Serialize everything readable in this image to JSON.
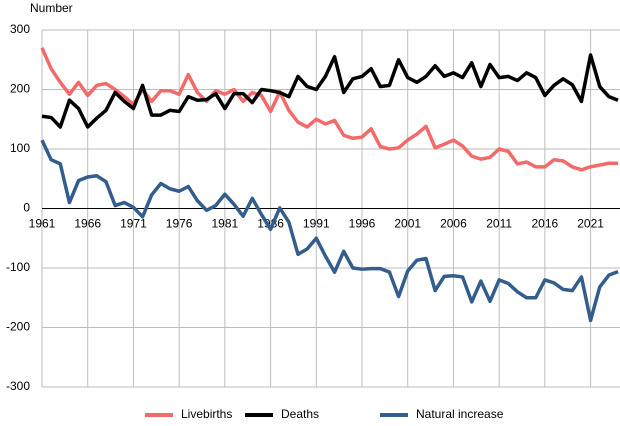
{
  "chart_data": {
    "type": "line",
    "y_label": "Number",
    "x": [
      1961,
      1962,
      1963,
      1964,
      1965,
      1966,
      1967,
      1968,
      1969,
      1970,
      1971,
      1972,
      1973,
      1974,
      1975,
      1976,
      1977,
      1978,
      1979,
      1980,
      1981,
      1982,
      1983,
      1984,
      1985,
      1986,
      1987,
      1988,
      1989,
      1990,
      1991,
      1992,
      1993,
      1994,
      1995,
      1996,
      1997,
      1998,
      1999,
      2000,
      2001,
      2002,
      2003,
      2004,
      2005,
      2006,
      2007,
      2008,
      2009,
      2010,
      2011,
      2012,
      2013,
      2014,
      2015,
      2016,
      2017,
      2018,
      2019,
      2020,
      2021,
      2022,
      2023,
      2024
    ],
    "series": [
      {
        "name": "Livebirths",
        "color": "#f26a6a",
        "values": [
          270,
          235,
          212,
          192,
          212,
          190,
          207,
          210,
          200,
          188,
          175,
          200,
          180,
          198,
          198,
          192,
          225,
          195,
          180,
          198,
          192,
          200,
          180,
          195,
          190,
          163,
          196,
          165,
          145,
          137,
          150,
          142,
          148,
          123,
          118,
          120,
          134,
          104,
          100,
          102,
          115,
          125,
          138,
          102,
          108,
          115,
          105,
          88,
          83,
          86,
          100,
          96,
          75,
          78,
          70,
          70,
          82,
          80,
          70,
          65,
          70,
          73,
          76,
          76
        ]
      },
      {
        "name": "Deaths",
        "color": "#000000",
        "values": [
          155,
          153,
          137,
          182,
          168,
          137,
          152,
          165,
          195,
          180,
          168,
          207,
          157,
          157,
          165,
          163,
          188,
          182,
          183,
          193,
          168,
          193,
          193,
          178,
          200,
          198,
          195,
          188,
          222,
          205,
          200,
          222,
          255,
          195,
          218,
          222,
          235,
          205,
          207,
          250,
          220,
          212,
          222,
          240,
          222,
          228,
          220,
          245,
          205,
          242,
          220,
          222,
          215,
          228,
          220,
          190,
          207,
          218,
          208,
          180,
          258,
          205,
          188,
          182
        ]
      },
      {
        "name": "Natural increase",
        "color": "#335d8c",
        "values": [
          115,
          82,
          75,
          10,
          47,
          53,
          55,
          45,
          5,
          10,
          2,
          -14,
          23,
          42,
          33,
          29,
          37,
          13,
          -3,
          5,
          24,
          7,
          -13,
          17,
          -10,
          -35,
          1,
          -23,
          -77,
          -68,
          -50,
          -80,
          -107,
          -72,
          -100,
          -102,
          -101,
          -101,
          -107,
          -148,
          -105,
          -87,
          -84,
          -138,
          -114,
          -113,
          -115,
          -157,
          -122,
          -156,
          -120,
          -126,
          -140,
          -150,
          -150,
          -120,
          -125,
          -136,
          -138,
          -115,
          -188,
          -132,
          -112,
          -106
        ]
      }
    ],
    "xlim": [
      1961,
      2024
    ],
    "xticks": [
      1961,
      1966,
      1971,
      1976,
      1981,
      1986,
      1991,
      1996,
      2001,
      2006,
      2011,
      2016,
      2021
    ],
    "ylim": [
      -300,
      300
    ],
    "yticks": [
      -300,
      -200,
      -100,
      0,
      100,
      200,
      300
    ],
    "grid": true,
    "legend": "bottom"
  }
}
